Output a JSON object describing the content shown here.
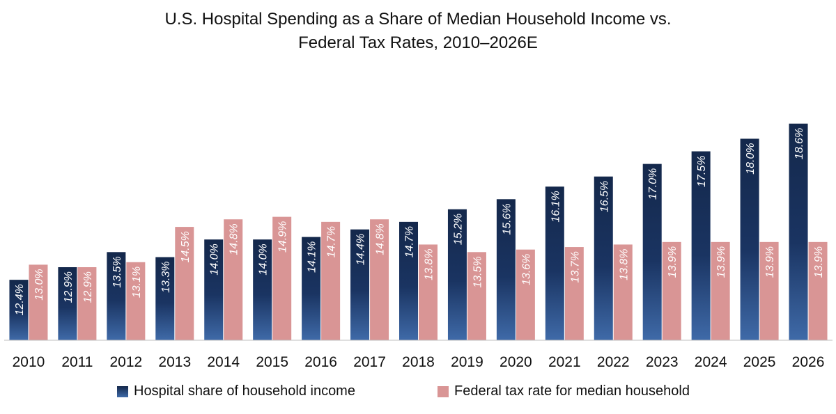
{
  "chart_data": {
    "type": "bar",
    "title": "U.S. Hospital Spending as a Share of Median Household Income vs. Federal Tax Rates, 2010–2026E",
    "title_lines": [
      "U.S. Hospital Spending as a Share of Median Household Income vs.",
      "Federal Tax Rates, 2010–2026E"
    ],
    "xlabel": "",
    "ylabel": "",
    "categories": [
      "2010",
      "2011",
      "2012",
      "2013",
      "2014",
      "2015",
      "2016",
      "2017",
      "2018",
      "2019",
      "2020",
      "2021",
      "2022",
      "2023",
      "2024",
      "2025",
      "2026"
    ],
    "series": [
      {
        "name": "Hospital share of household income",
        "values": [
          12.4,
          12.9,
          13.5,
          13.3,
          14.0,
          14.0,
          14.1,
          14.4,
          14.7,
          15.2,
          15.6,
          16.1,
          16.5,
          17.0,
          17.5,
          18.0,
          18.6
        ],
        "labels": [
          "12.4%",
          "12.9%",
          "13.5%",
          "13.3%",
          "14.0%",
          "14.0%",
          "14.1%",
          "14.4%",
          "14.7%",
          "15.2%",
          "15.6%",
          "16.1%",
          "16.5%",
          "17.0%",
          "17.5%",
          "18.0%",
          "18.6%"
        ],
        "color_top": "#14284b",
        "color_bottom": "#3f6aa8"
      },
      {
        "name": "Federal tax rate for median household",
        "values": [
          13.0,
          12.9,
          13.1,
          14.5,
          14.8,
          14.9,
          14.7,
          14.8,
          13.8,
          13.5,
          13.6,
          13.7,
          13.8,
          13.9,
          13.9,
          13.9,
          13.9
        ],
        "labels": [
          "13.0%",
          "12.9%",
          "13.1%",
          "14.5%",
          "14.8%",
          "14.9%",
          "14.7%",
          "14.8%",
          "13.8%",
          "13.5%",
          "13.6%",
          "13.7%",
          "13.8%",
          "13.9%",
          "13.9%",
          "13.9%",
          "13.9%"
        ],
        "color": "#d99595"
      }
    ],
    "ylim": [
      10,
      19.5
    ],
    "grid": false,
    "legend_position": "bottom"
  }
}
